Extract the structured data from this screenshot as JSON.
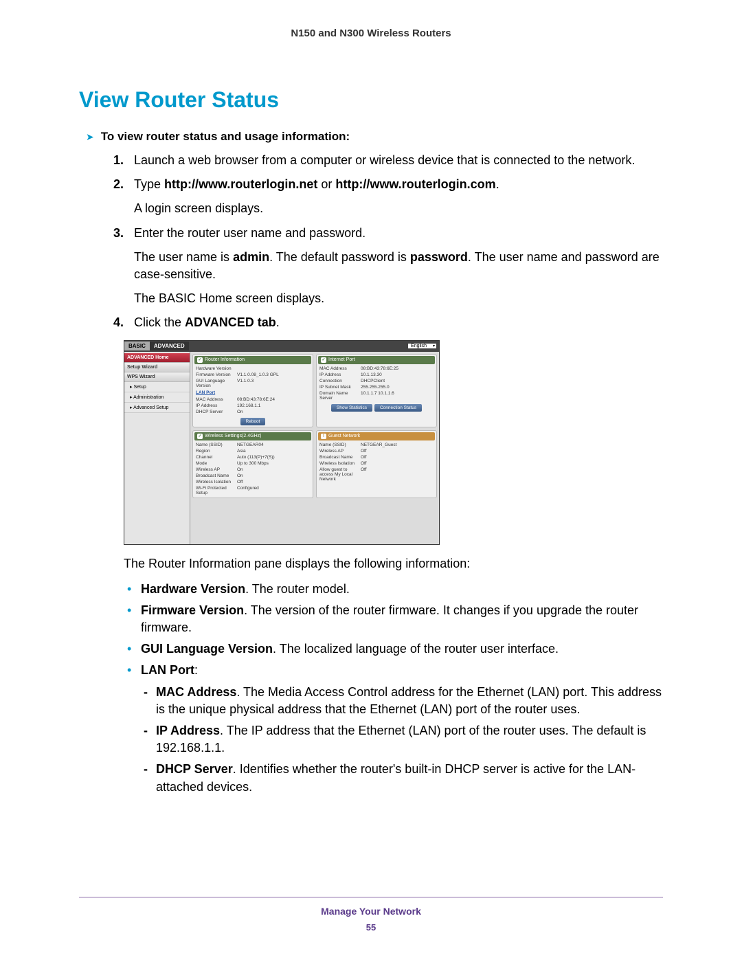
{
  "header": "N150 and N300 Wireless Routers",
  "section_title": "View Router Status",
  "intro": "To view router status and usage information:",
  "steps": {
    "s1": {
      "num": "1.",
      "text": "Launch a web browser from a computer or wireless device that is connected to the network."
    },
    "s2": {
      "num": "2.",
      "pre": "Type ",
      "b1": "http://www.routerlogin.net",
      "mid": " or ",
      "b2": "http://www.routerlogin.com",
      "post": ".",
      "p1": "A login screen displays."
    },
    "s3": {
      "num": "3.",
      "text": "Enter the router user name and password.",
      "p1a": "The user name is ",
      "p1b": "admin",
      "p1c": ". The default password is ",
      "p1d": "password",
      "p1e": ". The user name and password are case-sensitive.",
      "p2": "The BASIC Home screen displays."
    },
    "s4": {
      "num": "4.",
      "pre": "Click the ",
      "b": "ADVANCED tab",
      "post": "."
    }
  },
  "mock": {
    "tabs": {
      "basic": "BASIC",
      "advanced": "ADVANCED",
      "lang": "English"
    },
    "side": {
      "home": "ADVANCED Home",
      "setup": "Setup Wizard",
      "wps": "WPS Wizard",
      "s_setup": "▸ Setup",
      "s_admin": "▸ Administration",
      "s_adv": "▸ Advanced Setup"
    },
    "routerinfo": {
      "title": "Router Information",
      "hw_k": "Hardware Version",
      "hw_v": "",
      "fw_k": "Firmware Version",
      "fw_v": "V1.1.0.08_1.0.3  GPL",
      "gui_k": "GUI Language Version",
      "gui_v": "V1.1.0.3",
      "lan_h": "LAN Port",
      "mac_k": "MAC Address",
      "mac_v": "08:BD:43:78:6E:24",
      "ip_k": "IP Address",
      "ip_v": "192.168.1.1",
      "dhcp_k": "DHCP Server",
      "dhcp_v": "On",
      "reboot": "Reboot"
    },
    "internet": {
      "title": "Internet Port",
      "mac_k": "MAC Address",
      "mac_v": "08:BD:43:78:6E:25",
      "ip_k": "IP Address",
      "ip_v": "10.1.13.30",
      "conn_k": "Connection",
      "conn_v": "DHCPClient",
      "sub_k": "IP Subnet Mask",
      "sub_v": "255.255.255.0",
      "dns_k": "Domain Name Server",
      "dns_v": "10.1.1.7 10.1.1.6",
      "stats": "Show Statistics",
      "cstat": "Connection Status"
    },
    "wireless": {
      "title": "Wireless Settings(2.4GHz)",
      "ssid_k": "Name (SSID)",
      "ssid_v": "NETGEAR04",
      "reg_k": "Region",
      "reg_v": "Asia",
      "ch_k": "Channel",
      "ch_v": "Auto (113(P)+7(S))",
      "mode_k": "Mode",
      "mode_v": "Up to 300 Mbps",
      "ap_k": "Wireless AP",
      "ap_v": "On",
      "bn_k": "Broadcast Name",
      "bn_v": "On",
      "wi_k": "Wireless Isolation",
      "wi_v": "Off",
      "wps_k": "Wi-Fi Protected Setup",
      "wps_v": "Configured"
    },
    "guest": {
      "title": "Guest Network",
      "ssid_k": "Name (SSID)",
      "ssid_v": "NETGEAR_Guest",
      "ap_k": "Wireless AP",
      "ap_v": "Off",
      "bn_k": "Broadcast Name",
      "bn_v": "Off",
      "wi_k": "Wireless Isolation",
      "wi_v": "Off",
      "allow_k": "Allow guest to access My Local Network",
      "allow_v": "Off"
    }
  },
  "after_mock": "The Router Information pane displays the following information:",
  "bullets": {
    "hw": {
      "b": "Hardware Version",
      "t": ". The router model."
    },
    "fw": {
      "b": "Firmware Version",
      "t": ". The version of the router firmware. It changes if you upgrade the router firmware."
    },
    "gui": {
      "b": "GUI Language Version",
      "t": ". The localized language of the router user interface."
    },
    "lan": {
      "b": "LAN Port",
      "colon": ":",
      "mac": {
        "b": "MAC Address",
        "t": ". The Media Access Control address for the Ethernet (LAN) port. This address is the unique physical address that the Ethernet (LAN) port of the router uses."
      },
      "ip": {
        "b": "IP Address",
        "t": ". The IP address that the Ethernet (LAN) port of the router uses. The default is 192.168.1.1."
      },
      "dhcp": {
        "b": "DHCP Server",
        "t": ". Identifies whether the router's built-in DHCP server is active for the LAN-attached devices."
      }
    }
  },
  "footer": {
    "title": "Manage Your Network",
    "page": "55"
  }
}
